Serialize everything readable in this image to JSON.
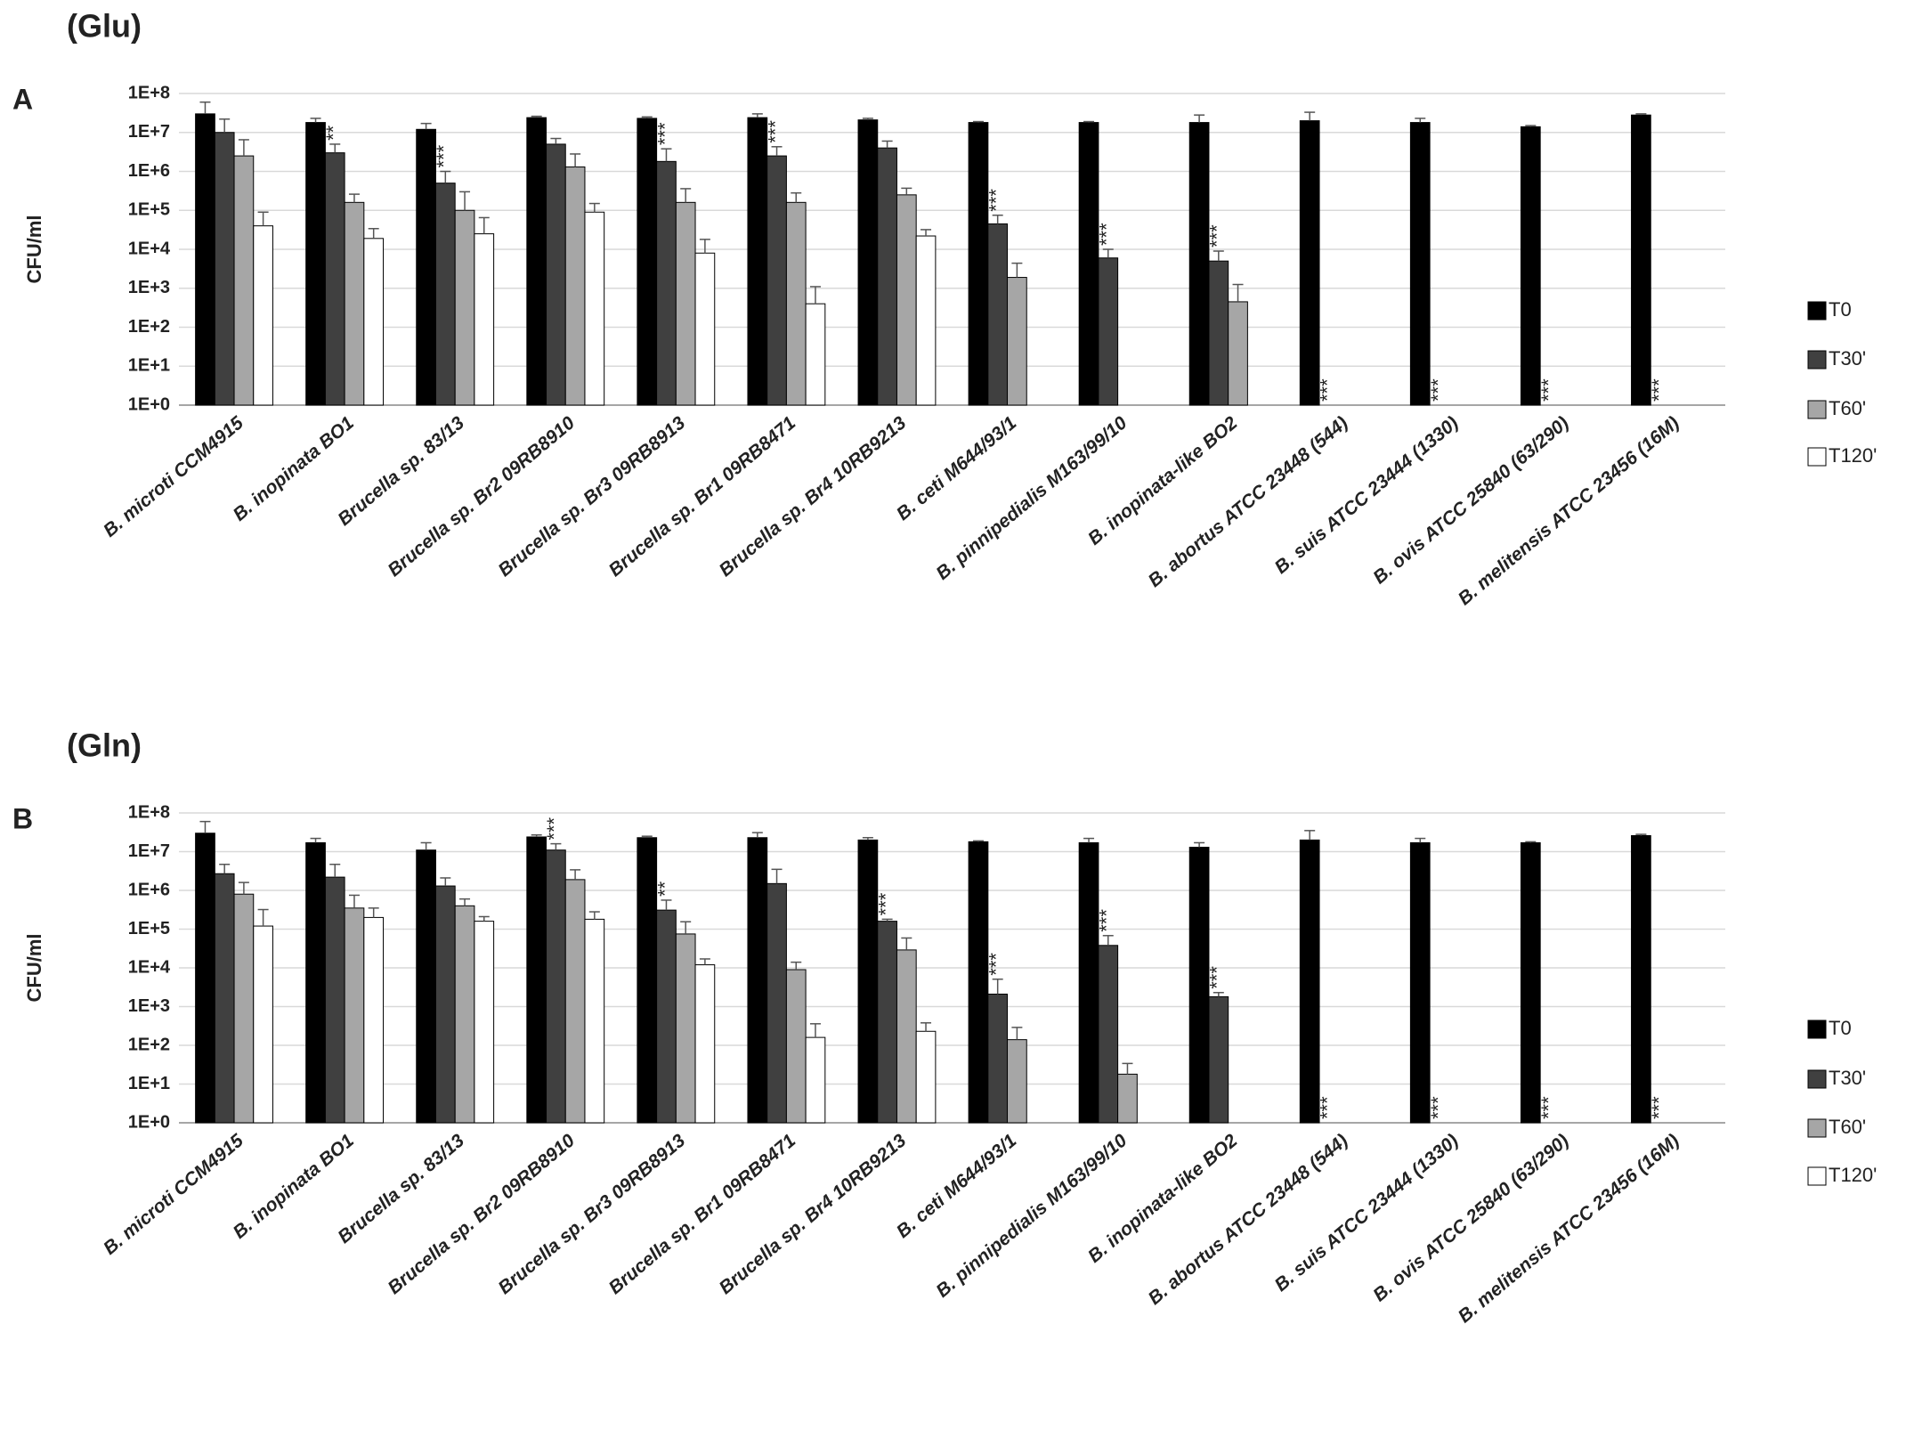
{
  "chart_data": [
    {
      "type": "bar",
      "title": "(Glu)",
      "panel": "A",
      "y_label": "CFU/ml",
      "log_scale": true,
      "grid": true,
      "legend": "right",
      "categories": [
        "B. microti CCM4915",
        "B. inopinata BO1",
        "Brucella sp. 83/13",
        "Brucella sp. Br2 09RB8910",
        "Brucella sp. Br3 09RB8913",
        "Brucella sp. Br1 09RB8471",
        "Brucella sp. Br4 10RB9213",
        "B. ceti M644/93/1",
        "B. pinnipedialis M163/99/10",
        "B. inopinata-like BO2",
        "B. abortus ATCC 23448 (544)",
        "B. suis ATCC 23444 (1330)",
        "B. ovis ATCC 25840 (63/290)",
        "B. melitensis ATCC 23456 (16M)"
      ],
      "ylim": [
        1,
        100000000
      ],
      "yticks": [
        {
          "value": 1,
          "label": "1E+0"
        },
        {
          "value": 10,
          "label": "1E+1"
        },
        {
          "value": 100,
          "label": "1E+2"
        },
        {
          "value": 1000,
          "label": "1E+3"
        },
        {
          "value": 10000,
          "label": "1E+4"
        },
        {
          "value": 100000,
          "label": "1E+5"
        },
        {
          "value": 1000000,
          "label": "1E+6"
        },
        {
          "value": 10000000,
          "label": "1E+7"
        },
        {
          "value": 100000000,
          "label": "1E+8"
        }
      ],
      "series": [
        {
          "name": "T0",
          "color": "#000000",
          "values": [
            30000000,
            18000000,
            12000000,
            24000000,
            23000000,
            24000000,
            21000000,
            18000000,
            18000000,
            18000000,
            20000000,
            18000000,
            14000000,
            28000000
          ],
          "errors": [
            30000000,
            5000000,
            5000000,
            2000000,
            2000000,
            6000000,
            2000000,
            1000000,
            1000000,
            10000000,
            13000000,
            5000000,
            1000000,
            2000000
          ],
          "significance": [
            null,
            null,
            null,
            null,
            null,
            null,
            null,
            null,
            null,
            null,
            null,
            null,
            null,
            null
          ]
        },
        {
          "name": "T30'",
          "color": "#404040",
          "values": [
            10000000,
            3000000,
            500000,
            5000000,
            1800000,
            2500000,
            4000000,
            45000,
            6000,
            5000,
            null,
            null,
            null,
            null
          ],
          "errors": [
            12000000,
            2000000,
            500000,
            2000000,
            2000000,
            1800000,
            2000000,
            30000,
            4000,
            4000,
            null,
            null,
            null,
            null
          ],
          "significance": [
            null,
            "**",
            "***",
            null,
            "***",
            "***",
            null,
            "***",
            "***",
            "***",
            "***",
            "***",
            "***",
            "***"
          ]
        },
        {
          "name": "T60'",
          "color": "#a6a6a6",
          "values": [
            2500000,
            160000,
            100000,
            1300000,
            160000,
            160000,
            250000,
            1900,
            null,
            450,
            null,
            null,
            null,
            null
          ],
          "errors": [
            4000000,
            100000,
            200000,
            1500000,
            200000,
            120000,
            120000,
            2500,
            null,
            800,
            null,
            null,
            null,
            null
          ],
          "significance": [
            null,
            null,
            null,
            null,
            null,
            null,
            null,
            null,
            null,
            null,
            null,
            null,
            null,
            null
          ]
        },
        {
          "name": "T120'",
          "color": "#ffffff",
          "values": [
            40000,
            19000,
            25000,
            90000,
            8000,
            400,
            22000,
            null,
            null,
            null,
            null,
            null,
            null,
            null
          ],
          "errors": [
            50000,
            15000,
            40000,
            60000,
            10000,
            700,
            10000,
            null,
            null,
            null,
            null,
            null,
            null,
            null
          ],
          "significance": [
            null,
            null,
            null,
            null,
            null,
            null,
            null,
            null,
            null,
            null,
            null,
            null,
            null,
            null
          ]
        }
      ]
    },
    {
      "type": "bar",
      "title": "(Gln)",
      "panel": "B",
      "y_label": "CFU/ml",
      "log_scale": true,
      "grid": true,
      "legend": "right",
      "categories": [
        "B. microti CCM4915",
        "B. inopinata BO1",
        "Brucella sp. 83/13",
        "Brucella sp. Br2 09RB8910",
        "Brucella sp. Br3 09RB8913",
        "Brucella sp. Br1 09RB8471",
        "Brucella sp. Br4 10RB9213",
        "B. ceti M644/93/1",
        "B. pinnipedialis M163/99/10",
        "B. inopinata-like BO2",
        "B. abortus ATCC 23448 (544)",
        "B. suis  ATCC 23444 (1330)",
        "B. ovis ATCC 25840 (63/290)",
        "B. melitensis ATCC 23456 (16M)"
      ],
      "ylim": [
        1,
        100000000
      ],
      "yticks": [
        {
          "value": 1,
          "label": "1E+0"
        },
        {
          "value": 10,
          "label": "1E+1"
        },
        {
          "value": 100,
          "label": "1E+2"
        },
        {
          "value": 1000,
          "label": "1E+3"
        },
        {
          "value": 10000,
          "label": "1E+4"
        },
        {
          "value": 100000,
          "label": "1E+5"
        },
        {
          "value": 1000000,
          "label": "1E+6"
        },
        {
          "value": 10000000,
          "label": "1E+7"
        },
        {
          "value": 100000000,
          "label": "1E+8"
        }
      ],
      "series": [
        {
          "name": "T0",
          "color": "#000000",
          "values": [
            30000000,
            17000000,
            11000000,
            24000000,
            23000000,
            23000000,
            20000000,
            18000000,
            17000000,
            13000000,
            20000000,
            17000000,
            17000000,
            26000000
          ],
          "errors": [
            30000000,
            5000000,
            6000000,
            3000000,
            2000000,
            8000000,
            3000000,
            1000000,
            5000000,
            4000000,
            15000000,
            5000000,
            1000000,
            2000000
          ],
          "significance": [
            null,
            null,
            null,
            null,
            null,
            null,
            null,
            null,
            null,
            null,
            null,
            null,
            null,
            null
          ]
        },
        {
          "name": "T30'",
          "color": "#404040",
          "values": [
            2700000,
            2200000,
            1300000,
            11000000,
            310000,
            1500000,
            160000,
            2100,
            38000,
            1800,
            null,
            null,
            null,
            null
          ],
          "errors": [
            2000000,
            2500000,
            800000,
            5000000,
            250000,
            2000000,
            20000,
            3000,
            30000,
            500,
            null,
            null,
            null,
            null
          ],
          "significance": [
            null,
            null,
            null,
            "***",
            "**",
            null,
            "***",
            "***",
            "***",
            "***",
            "***",
            "***",
            "***",
            "***"
          ]
        },
        {
          "name": "T60'",
          "color": "#a6a6a6",
          "values": [
            800000,
            350000,
            400000,
            1900000,
            75000,
            9000,
            29000,
            140,
            18,
            null,
            null,
            null,
            null,
            null
          ],
          "errors": [
            800000,
            400000,
            200000,
            1500000,
            80000,
            5000,
            30000,
            150,
            16,
            null,
            null,
            null,
            null,
            null
          ],
          "significance": [
            null,
            null,
            null,
            null,
            null,
            null,
            null,
            null,
            null,
            null,
            null,
            null,
            null,
            null
          ]
        },
        {
          "name": "T120'",
          "color": "#ffffff",
          "values": [
            120000,
            200000,
            160000,
            180000,
            12000,
            160,
            230,
            null,
            null,
            null,
            null,
            null,
            null,
            null
          ],
          "errors": [
            200000,
            150000,
            50000,
            100000,
            5000,
            200,
            150,
            null,
            null,
            null,
            null,
            null,
            null,
            null
          ],
          "significance": [
            null,
            null,
            null,
            null,
            null,
            null,
            null,
            null,
            null,
            null,
            null,
            null,
            null,
            null
          ]
        }
      ]
    }
  ]
}
